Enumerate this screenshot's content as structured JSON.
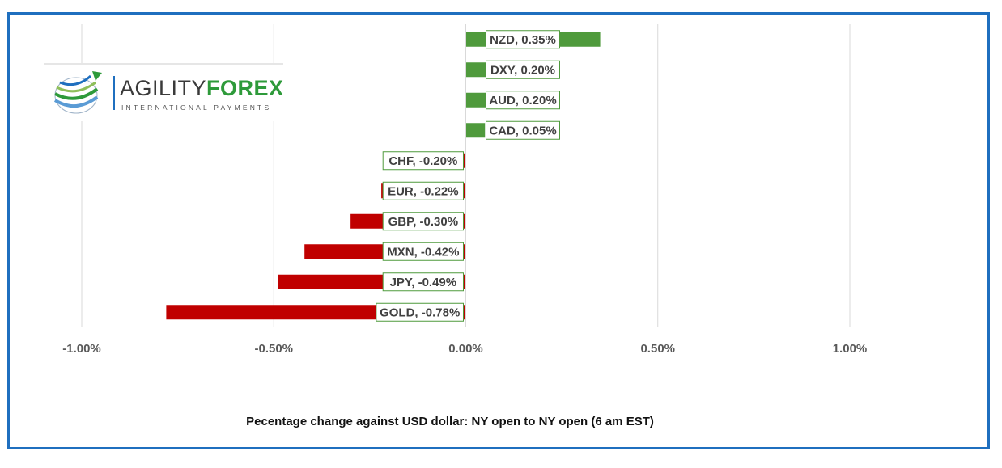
{
  "logo": {
    "word_a": "AGILITY",
    "word_b": "FOREX",
    "subtitle": "INTERNATIONAL PAYMENTS"
  },
  "chart_data": {
    "type": "bar",
    "orientation": "horizontal",
    "title": "",
    "xlabel": "Pecentage change against USD dollar: NY open to NY open (6 am EST)",
    "ylabel": "",
    "xlim": [
      -1.0,
      1.0
    ],
    "x_ticks": [
      "-1.00%",
      "-0.50%",
      "0.00%",
      "0.50%",
      "1.00%"
    ],
    "x_tick_values": [
      -1.0,
      -0.5,
      0.0,
      0.5,
      1.0
    ],
    "grid": "vertical",
    "categories": [
      "NZD",
      "DXY",
      "AUD",
      "CAD",
      "CHF",
      "EUR",
      "GBP",
      "MXN",
      "JPY",
      "GOLD"
    ],
    "values": [
      0.35,
      0.2,
      0.2,
      0.05,
      -0.2,
      -0.22,
      -0.3,
      -0.42,
      -0.49,
      -0.78
    ],
    "data_labels": [
      "NZD, 0.35%",
      "DXY, 0.20%",
      "AUD, 0.20%",
      "CAD, 0.05%",
      "CHF, -0.20%",
      "EUR, -0.22%",
      "GBP, -0.30%",
      "MXN, -0.42%",
      "JPY, -0.49%",
      "GOLD, -0.78%"
    ],
    "colors": {
      "positive": "#4f9a3c",
      "negative": "#c00000",
      "border": "#1f6fbf"
    }
  }
}
